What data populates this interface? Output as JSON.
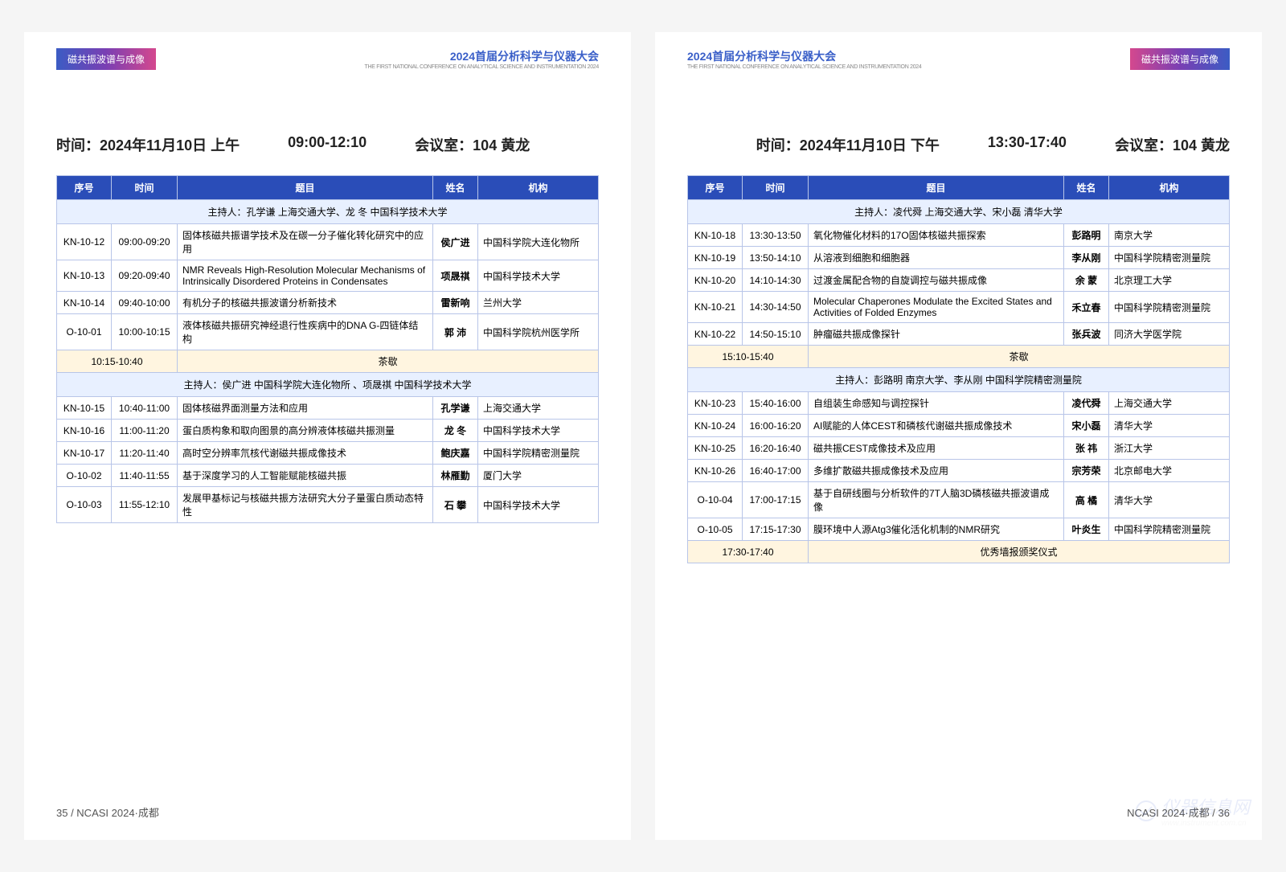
{
  "tag_text": "磁共振波谱与成像",
  "conference_title": "2024首届分析科学与仪器大会",
  "conference_sub": "THE FIRST NATIONAL CONFERENCE ON ANALYTICAL SCIENCE AND INSTRUMENTATION 2024",
  "footer_left": "35 /   NCASI 2024·成都",
  "footer_right": "NCASI 2024·成都 / 36",
  "watermark": "仪器信息网",
  "watermark_sub": "www.instrument.com.cn",
  "left": {
    "info_date": "时间：2024年11月10日 上午",
    "info_time": "09:00-12:10",
    "info_room": "会议室：104 黄龙",
    "headers": [
      "序号",
      "时间",
      "题目",
      "姓名",
      "机构"
    ],
    "host1": "主持人：孔学谦 上海交通大学、龙 冬 中国科学技术大学",
    "rows1": [
      {
        "id": "KN-10-12",
        "time": "09:00-09:20",
        "title": "固体核磁共振谱学技术及在碳一分子催化转化研究中的应用",
        "name": "侯广进",
        "org": "中国科学院大连化物所"
      },
      {
        "id": "KN-10-13",
        "time": "09:20-09:40",
        "title": "NMR Reveals High-Resolution Molecular Mechanisms of Intrinsically Disordered Proteins in Condensates",
        "name": "项晟祺",
        "org": "中国科学技术大学"
      },
      {
        "id": "KN-10-14",
        "time": "09:40-10:00",
        "title": "有机分子的核磁共振波谱分析新技术",
        "name": "雷新响",
        "org": "兰州大学"
      },
      {
        "id": "O-10-01",
        "time": "10:00-10:15",
        "title": "液体核磁共振研究神经退行性疾病中的DNA G-四链体结构",
        "name": "郭 沛",
        "org": "中国科学院杭州医学所"
      }
    ],
    "break1_time": "10:15-10:40",
    "break_label": "茶歇",
    "host2": "主持人：侯广进 中国科学院大连化物所 、项晟祺 中国科学技术大学",
    "rows2": [
      {
        "id": "KN-10-15",
        "time": "10:40-11:00",
        "title": "固体核磁界面测量方法和应用",
        "name": "孔学谦",
        "org": "上海交通大学"
      },
      {
        "id": "KN-10-16",
        "time": "11:00-11:20",
        "title": "蛋白质构象和取向图景的高分辨液体核磁共振测量",
        "name": "龙 冬",
        "org": "中国科学技术大学"
      },
      {
        "id": "KN-10-17",
        "time": "11:20-11:40",
        "title": "高时空分辨率氘核代谢磁共振成像技术",
        "name": "鲍庆嘉",
        "org": "中国科学院精密测量院"
      },
      {
        "id": "O-10-02",
        "time": "11:40-11:55",
        "title": "基于深度学习的人工智能赋能核磁共振",
        "name": "林雁勤",
        "org": "厦门大学"
      },
      {
        "id": "O-10-03",
        "time": "11:55-12:10",
        "title": "发展甲基标记与核磁共振方法研究大分子量蛋白质动态特性",
        "name": "石 攀",
        "org": "中国科学技术大学"
      }
    ]
  },
  "right": {
    "info_date": "时间：2024年11月10日 下午",
    "info_time": "13:30-17:40",
    "info_room": "会议室：104 黄龙",
    "headers": [
      "序号",
      "时间",
      "题目",
      "姓名",
      "机构"
    ],
    "host1": "主持人：凌代舜 上海交通大学、宋小磊 清华大学",
    "rows1": [
      {
        "id": "KN-10-18",
        "time": "13:30-13:50",
        "title": "氧化物催化材料的17O固体核磁共振探索",
        "name": "彭路明",
        "org": "南京大学"
      },
      {
        "id": "KN-10-19",
        "time": "13:50-14:10",
        "title": "从溶液到细胞和细胞器",
        "name": "李从刚",
        "org": "中国科学院精密测量院"
      },
      {
        "id": "KN-10-20",
        "time": "14:10-14:30",
        "title": "过渡金属配合物的自旋调控与磁共振成像",
        "name": "余 蒙",
        "org": "北京理工大学"
      },
      {
        "id": "KN-10-21",
        "time": "14:30-14:50",
        "title": "Molecular Chaperones Modulate the Excited States and Activities of Folded Enzymes",
        "name": "禾立春",
        "org": "中国科学院精密测量院"
      },
      {
        "id": "KN-10-22",
        "time": "14:50-15:10",
        "title": "肿瘤磁共振成像探针",
        "name": "张兵波",
        "org": "同济大学医学院"
      }
    ],
    "break1_time": "15:10-15:40",
    "break_label": "茶歇",
    "host2": "主持人：彭路明 南京大学、李从刚 中国科学院精密测量院",
    "rows2": [
      {
        "id": "KN-10-23",
        "time": "15:40-16:00",
        "title": "自组装生命感知与调控探针",
        "name": "凌代舜",
        "org": "上海交通大学"
      },
      {
        "id": "KN-10-24",
        "time": "16:00-16:20",
        "title": "AI赋能的人体CEST和磷核代谢磁共振成像技术",
        "name": "宋小磊",
        "org": "清华大学"
      },
      {
        "id": "KN-10-25",
        "time": "16:20-16:40",
        "title": "磁共振CEST成像技术及应用",
        "name": "张 祎",
        "org": "浙江大学"
      },
      {
        "id": "KN-10-26",
        "time": "16:40-17:00",
        "title": "多维扩散磁共振成像技术及应用",
        "name": "宗芳荣",
        "org": "北京邮电大学"
      },
      {
        "id": "O-10-04",
        "time": "17:00-17:15",
        "title": "基于自研线圈与分析软件的7T人脑3D磷核磁共振波谱成像",
        "name": "高 橘",
        "org": "清华大学"
      },
      {
        "id": "O-10-05",
        "time": "17:15-17:30",
        "title": "膜环境中人源Atg3催化活化机制的NMR研究",
        "name": "叶炎生",
        "org": "中国科学院精密测量院"
      }
    ],
    "award_time": "17:30-17:40",
    "award_label": "优秀墙报颁奖仪式"
  },
  "colors": {
    "header_bg": "#2a4db8",
    "border": "#b8c5e8",
    "host_bg": "#e8f0ff",
    "break_bg": "#fff5e0"
  }
}
